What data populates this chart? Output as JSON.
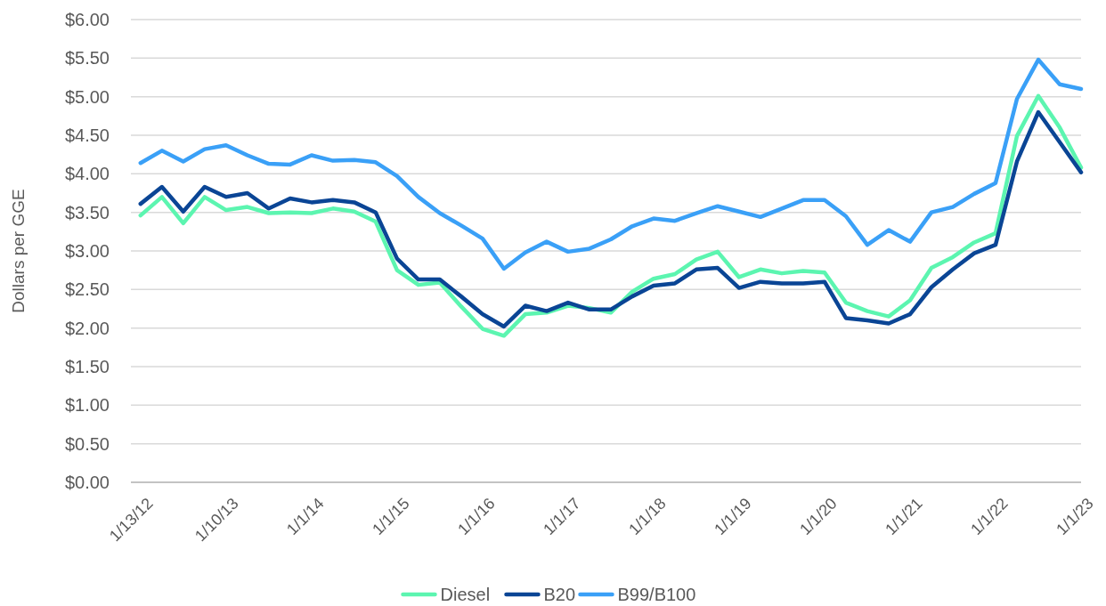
{
  "chart_data": {
    "type": "line",
    "ylabel": "Dollars per GGE",
    "categories": [
      "1/13/12",
      null,
      null,
      null,
      "1/10/13",
      null,
      null,
      null,
      "1/1/14",
      null,
      null,
      null,
      "1/1/15",
      null,
      null,
      null,
      "1/1/16",
      null,
      null,
      null,
      "1/1/17",
      null,
      null,
      null,
      "1/1/18",
      null,
      null,
      null,
      "1/1/19",
      null,
      null,
      null,
      "1/1/20",
      null,
      null,
      null,
      "1/1/21",
      null,
      null,
      null,
      "1/1/22",
      null,
      null,
      null,
      "1/1/23"
    ],
    "series": [
      {
        "name": "Diesel",
        "color": "#5cf5b0",
        "values": [
          3.46,
          3.7,
          3.36,
          3.7,
          3.53,
          3.57,
          3.49,
          3.5,
          3.49,
          3.55,
          3.51,
          3.38,
          2.75,
          2.56,
          2.59,
          2.28,
          1.99,
          1.9,
          2.18,
          2.2,
          2.29,
          2.26,
          2.2,
          2.47,
          2.64,
          2.7,
          2.89,
          2.99,
          2.66,
          2.76,
          2.71,
          2.74,
          2.72,
          2.33,
          2.22,
          2.15,
          2.36,
          2.78,
          2.92,
          3.11,
          3.23,
          4.49,
          5.01,
          4.6,
          4.08
        ]
      },
      {
        "name": "B20",
        "color": "#0a4595",
        "values": [
          3.61,
          3.83,
          3.51,
          3.83,
          3.7,
          3.75,
          3.55,
          3.68,
          3.63,
          3.66,
          3.63,
          3.5,
          2.9,
          2.63,
          2.63,
          2.41,
          2.18,
          2.02,
          2.29,
          2.22,
          2.33,
          2.24,
          2.24,
          2.41,
          2.55,
          2.58,
          2.76,
          2.78,
          2.52,
          2.6,
          2.58,
          2.58,
          2.6,
          2.13,
          2.1,
          2.06,
          2.18,
          2.53,
          2.76,
          2.97,
          3.08,
          4.16,
          4.8,
          4.41,
          4.02
        ]
      },
      {
        "name": "B99/B100",
        "color": "#3aa0f7",
        "values": [
          4.14,
          4.3,
          4.16,
          4.32,
          4.37,
          4.24,
          4.13,
          4.12,
          4.24,
          4.17,
          4.18,
          4.15,
          3.97,
          3.7,
          3.49,
          3.33,
          3.16,
          2.77,
          2.98,
          3.12,
          2.99,
          3.03,
          3.15,
          3.32,
          3.42,
          3.39,
          3.49,
          3.58,
          3.51,
          3.44,
          3.55,
          3.66,
          3.66,
          3.45,
          3.08,
          3.27,
          3.12,
          3.5,
          3.57,
          3.74,
          3.88,
          4.97,
          5.48,
          5.16,
          5.1
        ]
      }
    ],
    "ylim": [
      0,
      6
    ],
    "yticks": [
      {
        "value": 0,
        "label": "$0.00"
      },
      {
        "value": 0.5,
        "label": "$0.50"
      },
      {
        "value": 1,
        "label": "$1.00"
      },
      {
        "value": 1.5,
        "label": "$1.50"
      },
      {
        "value": 2,
        "label": "$2.00"
      },
      {
        "value": 2.5,
        "label": "$2.50"
      },
      {
        "value": 3,
        "label": "$3.00"
      },
      {
        "value": 3.5,
        "label": "$3.50"
      },
      {
        "value": 4,
        "label": "$4.00"
      },
      {
        "value": 4.5,
        "label": "$4.50"
      },
      {
        "value": 5,
        "label": "$5.00"
      },
      {
        "value": 5.5,
        "label": "$5.50"
      },
      {
        "value": 6,
        "label": "$6.00"
      }
    ],
    "grid": "y",
    "legend": "bottom",
    "marker": "none",
    "line_style": "solid"
  }
}
